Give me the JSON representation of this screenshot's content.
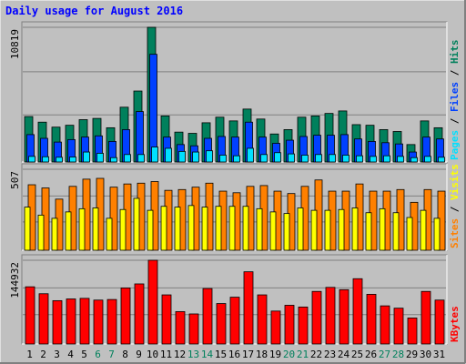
{
  "title": "Daily usage for August 2016",
  "colors": {
    "background": "#c0c0c0",
    "hits": "#00805c",
    "files": "#0040ff",
    "pages": "#00e0ff",
    "visits": "#ffff00",
    "sites": "#ff8000",
    "kbytes": "#ff0000",
    "title": "#0000ff",
    "weekend_day": "#00805c",
    "weekday": "#000000"
  },
  "chart_data": [
    {
      "type": "bar",
      "panel": "hits-files-pages",
      "label_parts": [
        "Pages",
        " / ",
        "Files",
        " / ",
        "Hits"
      ],
      "ymax_label": "10819",
      "ylim": [
        0,
        10819
      ],
      "categories": [
        "1",
        "2",
        "3",
        "4",
        "5",
        "6",
        "7",
        "8",
        "9",
        "10",
        "11",
        "12",
        "13",
        "14",
        "15",
        "16",
        "17",
        "18",
        "19",
        "20",
        "21",
        "22",
        "23",
        "24",
        "25",
        "26",
        "27",
        "28",
        "29",
        "30",
        "31"
      ],
      "series": [
        {
          "name": "Hits",
          "values": [
            3650,
            3200,
            2800,
            2950,
            3400,
            3500,
            2750,
            4400,
            5700,
            10819,
            3700,
            2400,
            2300,
            3150,
            3600,
            3300,
            4250,
            3450,
            2250,
            2600,
            3600,
            3700,
            3900,
            4100,
            3000,
            2950,
            2600,
            2450,
            1400,
            3300,
            2750
          ]
        },
        {
          "name": "Files",
          "values": [
            2200,
            1900,
            1600,
            1800,
            2000,
            2100,
            1650,
            2600,
            4050,
            8650,
            2000,
            1400,
            1300,
            1900,
            2050,
            2000,
            3200,
            2000,
            1500,
            1750,
            2050,
            2150,
            2150,
            2200,
            1850,
            1650,
            1550,
            1450,
            800,
            2000,
            1850
          ]
        },
        {
          "name": "Pages",
          "values": [
            450,
            420,
            380,
            400,
            800,
            700,
            350,
            600,
            600,
            1200,
            1100,
            850,
            800,
            900,
            550,
            500,
            1100,
            600,
            750,
            650,
            550,
            600,
            600,
            550,
            500,
            450,
            500,
            450,
            350,
            450,
            380
          ]
        }
      ]
    },
    {
      "type": "bar",
      "panel": "visits-sites",
      "label_parts": [
        "Sites",
        " / ",
        "Visits"
      ],
      "ymax_label": "507",
      "ylim": [
        0,
        507
      ],
      "categories": [
        "1",
        "2",
        "3",
        "4",
        "5",
        "6",
        "7",
        "8",
        "9",
        "10",
        "11",
        "12",
        "13",
        "14",
        "15",
        "16",
        "17",
        "18",
        "19",
        "20",
        "21",
        "22",
        "23",
        "24",
        "25",
        "26",
        "27",
        "28",
        "29",
        "30",
        "31"
      ],
      "series": [
        {
          "name": "Visits",
          "values": [
            270,
            220,
            200,
            240,
            260,
            265,
            200,
            255,
            325,
            250,
            275,
            270,
            280,
            270,
            275,
            275,
            275,
            260,
            240,
            230,
            265,
            250,
            250,
            255,
            265,
            235,
            260,
            235,
            205,
            250,
            200
          ]
        },
        {
          "name": "Sites",
          "values": [
            410,
            390,
            320,
            400,
            445,
            450,
            395,
            415,
            420,
            430,
            375,
            380,
            395,
            420,
            370,
            360,
            400,
            405,
            370,
            355,
            400,
            440,
            370,
            370,
            415,
            370,
            370,
            380,
            300,
            380,
            370
          ]
        }
      ]
    },
    {
      "type": "bar",
      "panel": "kbytes",
      "label_parts": [
        "KBytes"
      ],
      "ymax_label": "144932",
      "ylim": [
        0,
        144932
      ],
      "categories": [
        "1",
        "2",
        "3",
        "4",
        "5",
        "6",
        "7",
        "8",
        "9",
        "10",
        "11",
        "12",
        "13",
        "14",
        "15",
        "16",
        "17",
        "18",
        "19",
        "20",
        "21",
        "22",
        "23",
        "24",
        "25",
        "26",
        "27",
        "28",
        "29",
        "30",
        "31"
      ],
      "series": [
        {
          "name": "KBytes",
          "values": [
            99000,
            87000,
            75000,
            78000,
            79000,
            76000,
            77000,
            97000,
            104000,
            144932,
            85000,
            56000,
            52000,
            96000,
            70000,
            81000,
            125000,
            85000,
            57000,
            67000,
            64000,
            91000,
            98000,
            94000,
            113000,
            86000,
            66000,
            62000,
            45000,
            91000,
            76000
          ]
        }
      ]
    }
  ],
  "x_labels": [
    "1",
    "2",
    "3",
    "4",
    "5",
    "6",
    "7",
    "8",
    "9",
    "10",
    "11",
    "12",
    "13",
    "14",
    "15",
    "16",
    "17",
    "18",
    "19",
    "20",
    "21",
    "22",
    "23",
    "24",
    "25",
    "26",
    "27",
    "28",
    "29",
    "30",
    "31"
  ],
  "weekend_days": [
    "6",
    "7",
    "13",
    "14",
    "20",
    "21",
    "27",
    "28"
  ]
}
